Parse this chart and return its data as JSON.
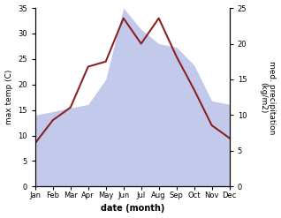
{
  "months": [
    "Jan",
    "Feb",
    "Mar",
    "Apr",
    "May",
    "Jun",
    "Jul",
    "Aug",
    "Sep",
    "Oct",
    "Nov",
    "Dec"
  ],
  "temp": [
    8.5,
    13.0,
    15.5,
    23.5,
    24.5,
    33.0,
    28.0,
    33.0,
    25.5,
    19.0,
    12.0,
    9.5
  ],
  "precip": [
    10.0,
    10.5,
    11.0,
    11.5,
    15.0,
    25.0,
    22.0,
    20.0,
    19.5,
    17.0,
    12.0,
    11.5
  ],
  "temp_color": "#8b2222",
  "precip_fill_color": "#b8c0e8",
  "temp_ylim": [
    0,
    35
  ],
  "precip_ylim": [
    0,
    25
  ],
  "xlabel": "date (month)",
  "ylabel_left": "max temp (C)",
  "ylabel_right": "med. precipitation\n(kg/m2)",
  "background_color": "#ffffff"
}
